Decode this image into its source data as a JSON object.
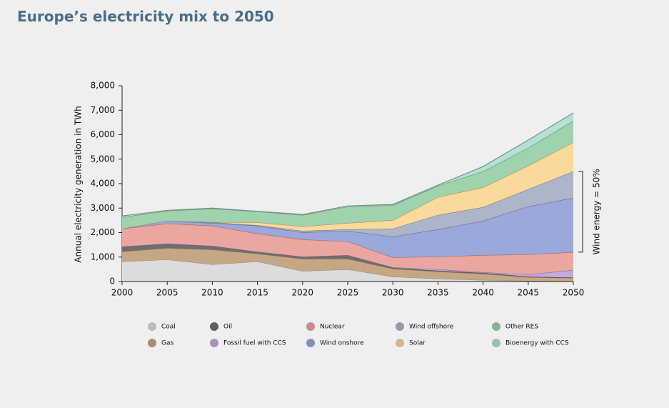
{
  "chart_data": {
    "type": "stacked-area",
    "title": "Europe’s electricity mix to 2050",
    "y_label": "Annual electricity generation in TWh",
    "annotation": "Wind energy = 50%",
    "x": [
      2000,
      2005,
      2010,
      2015,
      2020,
      2025,
      2030,
      2035,
      2040,
      2045,
      2050
    ],
    "xlim": [
      2000,
      2050
    ],
    "xticks": [
      2000,
      2005,
      2010,
      2015,
      2020,
      2025,
      2030,
      2035,
      2040,
      2045,
      2050
    ],
    "ylim": [
      0,
      8000
    ],
    "yticks": [
      0,
      {
        "value": 1000,
        "label": "1,000"
      },
      {
        "value": 2000,
        "label": "2,000"
      },
      {
        "value": 3000,
        "label": "3,000"
      },
      {
        "value": 4000,
        "label": "4,000"
      },
      {
        "value": 5000,
        "label": "5,000"
      },
      {
        "value": 6000,
        "label": "6,000"
      },
      {
        "value": 7000,
        "label": "7,000"
      },
      {
        "value": 8000,
        "label": "8,000"
      }
    ],
    "series": [
      {
        "name": "Coal",
        "color": "#dcdcdc",
        "values": [
          820,
          900,
          700,
          820,
          430,
          500,
          200,
          120,
          60,
          30,
          10
        ]
      },
      {
        "name": "Gas",
        "color": "#c6a783",
        "values": [
          410,
          470,
          610,
          320,
          500,
          430,
          330,
          290,
          260,
          150,
          140
        ]
      },
      {
        "name": "Oil",
        "color": "#6e6e6e",
        "values": [
          200,
          180,
          150,
          80,
          90,
          150,
          30,
          30,
          30,
          20,
          10
        ]
      },
      {
        "name": "Fossil fuel with CCS",
        "color": "#c5aadd",
        "values": [
          0,
          0,
          0,
          0,
          0,
          0,
          20,
          60,
          30,
          90,
          310
        ]
      },
      {
        "name": "Nuclear",
        "color": "#eaa6a1",
        "values": [
          730,
          820,
          820,
          740,
          700,
          560,
          410,
          520,
          700,
          820,
          730
        ]
      },
      {
        "name": "Wind onshore",
        "color": "#9ca7da",
        "values": [
          0,
          110,
          110,
          320,
          290,
          430,
          850,
          1110,
          1400,
          1960,
          2220
        ]
      },
      {
        "name": "Wind offshore",
        "color": "#adb6c9",
        "values": [
          0,
          0,
          30,
          20,
          60,
          60,
          320,
          590,
          560,
          700,
          1080
        ]
      },
      {
        "name": "Solar",
        "color": "#fad99b",
        "values": [
          0,
          0,
          10,
          120,
          180,
          260,
          350,
          730,
          810,
          960,
          1190
        ]
      },
      {
        "name": "Other RES",
        "color": "#9fd3ad",
        "values": [
          470,
          410,
          550,
          440,
          470,
          670,
          610,
          460,
          650,
          730,
          880
        ]
      },
      {
        "name": "Bioenergy with CCS",
        "color": "#b3e2d5",
        "values": [
          50,
          20,
          20,
          10,
          20,
          30,
          30,
          30,
          200,
          320,
          320
        ]
      }
    ]
  }
}
